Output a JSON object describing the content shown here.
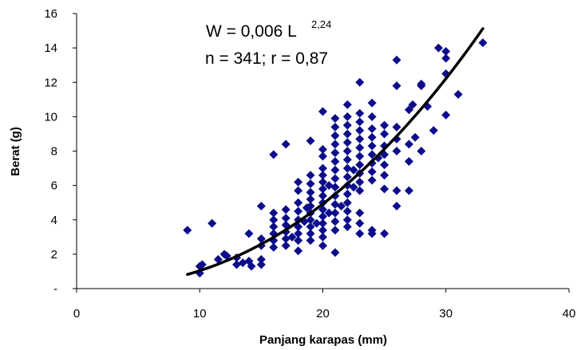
{
  "chart_data": {
    "type": "scatter",
    "title": "",
    "xlabel": "Panjang karapas (mm)",
    "ylabel": "Berat (g)",
    "xlim": [
      0,
      40
    ],
    "ylim": [
      0,
      16
    ],
    "x_ticks": [
      0,
      10,
      20,
      30,
      40
    ],
    "y_ticks": [
      {
        "value": 0,
        "label": "-"
      },
      {
        "value": 2,
        "label": "2"
      },
      {
        "value": 4,
        "label": "4"
      },
      {
        "value": 6,
        "label": "6"
      },
      {
        "value": 8,
        "label": "8"
      },
      {
        "value": 10,
        "label": "10"
      },
      {
        "value": 12,
        "label": "12"
      },
      {
        "value": 14,
        "label": "14"
      },
      {
        "value": 16,
        "label": "16"
      }
    ],
    "grid": false,
    "marker_color": "#0d0d8c",
    "curve_color": "#000000",
    "annotation": {
      "equation_main": "W = 0,006 L",
      "equation_exponent": "2,24",
      "stats": "n = 341; r = 0,87"
    },
    "fit": {
      "a": 0.006,
      "b": 2.24,
      "x_range": [
        9,
        33
      ]
    },
    "points": [
      [
        9.0,
        3.4
      ],
      [
        10.0,
        1.3
      ],
      [
        10.0,
        0.9
      ],
      [
        10.2,
        1.4
      ],
      [
        11.0,
        3.8
      ],
      [
        11.5,
        1.7
      ],
      [
        12.0,
        2.0
      ],
      [
        12.2,
        1.9
      ],
      [
        13.0,
        1.8
      ],
      [
        13.0,
        1.4
      ],
      [
        13.5,
        1.5
      ],
      [
        14.0,
        3.2
      ],
      [
        14.0,
        1.6
      ],
      [
        14.2,
        1.3
      ],
      [
        15.0,
        4.8
      ],
      [
        15.0,
        2.9
      ],
      [
        15.0,
        2.5
      ],
      [
        15.0,
        1.7
      ],
      [
        15.0,
        1.4
      ],
      [
        16.0,
        7.8
      ],
      [
        16.0,
        4.4
      ],
      [
        16.0,
        4.0
      ],
      [
        16.0,
        3.6
      ],
      [
        16.0,
        3.2
      ],
      [
        16.0,
        2.8
      ],
      [
        16.0,
        2.4
      ],
      [
        17.0,
        8.4
      ],
      [
        17.0,
        4.6
      ],
      [
        17.0,
        4.1
      ],
      [
        17.0,
        3.7
      ],
      [
        17.0,
        3.3
      ],
      [
        17.0,
        2.9
      ],
      [
        17.0,
        2.5
      ],
      [
        17.5,
        3.0
      ],
      [
        18.0,
        6.2
      ],
      [
        18.0,
        5.7
      ],
      [
        18.0,
        5.0
      ],
      [
        18.0,
        4.5
      ],
      [
        18.0,
        4.0
      ],
      [
        18.0,
        3.6
      ],
      [
        18.0,
        3.2
      ],
      [
        18.0,
        2.8
      ],
      [
        18.0,
        2.2
      ],
      [
        18.5,
        3.9
      ],
      [
        18.7,
        4.7
      ],
      [
        19.0,
        8.6
      ],
      [
        19.0,
        6.6
      ],
      [
        19.0,
        6.1
      ],
      [
        19.0,
        5.6
      ],
      [
        19.0,
        5.2
      ],
      [
        19.0,
        4.8
      ],
      [
        19.0,
        4.4
      ],
      [
        19.0,
        4.0
      ],
      [
        19.0,
        3.6
      ],
      [
        19.0,
        3.2
      ],
      [
        19.0,
        2.8
      ],
      [
        19.5,
        3.8
      ],
      [
        20.0,
        10.3
      ],
      [
        20.0,
        8.1
      ],
      [
        20.0,
        7.7
      ],
      [
        20.0,
        7.0
      ],
      [
        20.0,
        6.6
      ],
      [
        20.0,
        6.2
      ],
      [
        20.0,
        5.8
      ],
      [
        20.0,
        5.4
      ],
      [
        20.0,
        5.0
      ],
      [
        20.0,
        4.6
      ],
      [
        20.0,
        4.2
      ],
      [
        20.0,
        3.8
      ],
      [
        20.0,
        3.4
      ],
      [
        20.0,
        3.0
      ],
      [
        20.0,
        2.5
      ],
      [
        20.5,
        6.0
      ],
      [
        20.5,
        4.4
      ],
      [
        21.0,
        9.9
      ],
      [
        21.0,
        9.4
      ],
      [
        21.0,
        8.9
      ],
      [
        21.0,
        8.4
      ],
      [
        21.0,
        7.9
      ],
      [
        21.0,
        7.4
      ],
      [
        21.0,
        6.9
      ],
      [
        21.0,
        6.4
      ],
      [
        21.0,
        5.9
      ],
      [
        21.0,
        5.4
      ],
      [
        21.0,
        4.9
      ],
      [
        21.0,
        4.4
      ],
      [
        21.0,
        3.9
      ],
      [
        21.0,
        3.4
      ],
      [
        21.0,
        2.1
      ],
      [
        21.5,
        4.8
      ],
      [
        22.0,
        10.7
      ],
      [
        22.0,
        10.0
      ],
      [
        22.0,
        9.5
      ],
      [
        22.0,
        9.0
      ],
      [
        22.0,
        8.5
      ],
      [
        22.0,
        8.0
      ],
      [
        22.0,
        7.5
      ],
      [
        22.0,
        7.0
      ],
      [
        22.0,
        6.5
      ],
      [
        22.0,
        6.0
      ],
      [
        22.0,
        5.5
      ],
      [
        22.0,
        5.0
      ],
      [
        22.0,
        4.5
      ],
      [
        22.0,
        4.0
      ],
      [
        22.0,
        3.6
      ],
      [
        22.5,
        6.9
      ],
      [
        22.5,
        5.9
      ],
      [
        23.0,
        12.0
      ],
      [
        23.0,
        10.2
      ],
      [
        23.0,
        9.7
      ],
      [
        23.0,
        9.2
      ],
      [
        23.0,
        8.7
      ],
      [
        23.0,
        8.2
      ],
      [
        23.0,
        7.7
      ],
      [
        23.0,
        7.2
      ],
      [
        23.0,
        6.7
      ],
      [
        23.0,
        6.2
      ],
      [
        23.0,
        5.7
      ],
      [
        23.0,
        4.4
      ],
      [
        23.0,
        3.8
      ],
      [
        23.0,
        3.2
      ],
      [
        24.0,
        10.8
      ],
      [
        24.0,
        10.0
      ],
      [
        24.0,
        9.3
      ],
      [
        24.0,
        8.8
      ],
      [
        24.0,
        8.3
      ],
      [
        24.0,
        7.8
      ],
      [
        24.0,
        7.3
      ],
      [
        24.0,
        6.8
      ],
      [
        24.0,
        6.3
      ],
      [
        24.0,
        3.4
      ],
      [
        24.0,
        3.2
      ],
      [
        24.5,
        7.6
      ],
      [
        25.0,
        9.5
      ],
      [
        25.0,
        9.0
      ],
      [
        25.0,
        8.3
      ],
      [
        25.0,
        7.8
      ],
      [
        25.0,
        7.2
      ],
      [
        25.0,
        6.6
      ],
      [
        25.0,
        5.8
      ],
      [
        25.0,
        3.2
      ],
      [
        26.0,
        13.3
      ],
      [
        26.0,
        11.8
      ],
      [
        26.0,
        9.4
      ],
      [
        26.0,
        8.7
      ],
      [
        26.0,
        8.0
      ],
      [
        26.0,
        5.7
      ],
      [
        26.0,
        4.8
      ],
      [
        27.0,
        10.4
      ],
      [
        27.0,
        8.4
      ],
      [
        27.0,
        7.4
      ],
      [
        27.0,
        5.7
      ],
      [
        27.3,
        10.7
      ],
      [
        27.5,
        8.8
      ],
      [
        28.0,
        11.9
      ],
      [
        28.0,
        11.8
      ],
      [
        28.0,
        8.0
      ],
      [
        28.5,
        10.6
      ],
      [
        29.0,
        9.2
      ],
      [
        29.4,
        14.0
      ],
      [
        30.0,
        13.8
      ],
      [
        30.0,
        13.4
      ],
      [
        30.0,
        12.5
      ],
      [
        30.0,
        10.1
      ],
      [
        31.0,
        11.3
      ],
      [
        33.0,
        14.3
      ]
    ]
  }
}
